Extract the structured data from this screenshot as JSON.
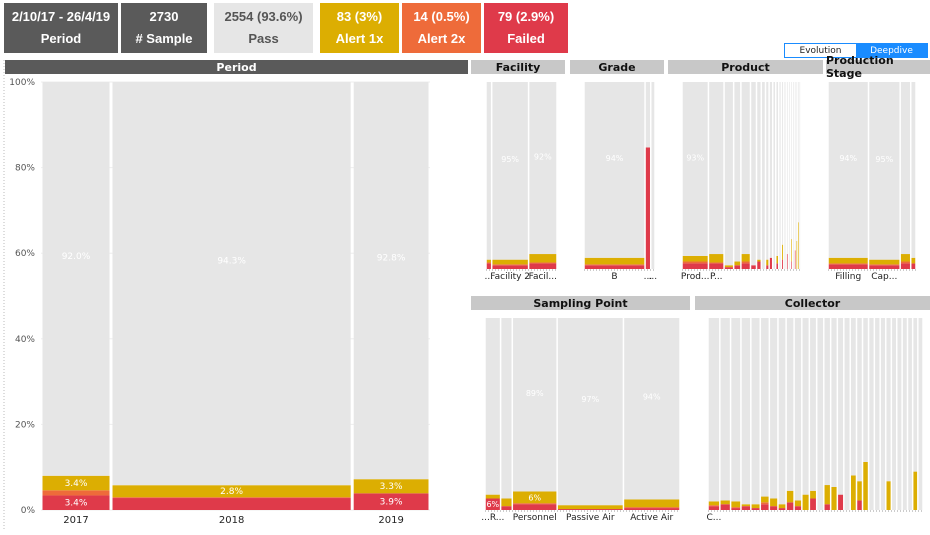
{
  "kpis": [
    {
      "value": "2/10/17 - 26/4/19",
      "label": "Period",
      "bg": "#5a5a5a",
      "fg": "#ffffff"
    },
    {
      "value": "2730",
      "label": "# Sample",
      "bg": "#5a5a5a",
      "fg": "#ffffff"
    },
    {
      "value": "2554 (93.6%)",
      "label": "Pass",
      "bg": "#e6e6e6",
      "fg": "#555555"
    },
    {
      "value": "83 (3%)",
      "label": "Alert 1x",
      "bg": "#dcae02",
      "fg": "#ffffff"
    },
    {
      "value": "14 (0.5%)",
      "label": "Alert 2x",
      "bg": "#ee6b3a",
      "fg": "#ffffff"
    },
    {
      "value": "79 (2.9%)",
      "label": "Failed",
      "bg": "#df3a4a",
      "fg": "#ffffff"
    }
  ],
  "toggle": {
    "evolution": "Evolution",
    "deepdive": "Deepdive"
  },
  "colors": {
    "pass": "#e6e6e6",
    "alert1": "#dcae02",
    "alert2": "#ee6b3a",
    "failed": "#df3a4a",
    "header": "#c8c8c8",
    "header_dark": "#5a5a5a"
  },
  "chart_data": [
    {
      "type": "bar",
      "title": "Period",
      "stacked": "100%",
      "categories": [
        "2017",
        "2018",
        "2019"
      ],
      "widths": [
        0.18,
        0.62,
        0.2
      ],
      "y_ticks": [
        "0%",
        "20%",
        "40%",
        "60%",
        "80%",
        "100%"
      ],
      "ylim": [
        0,
        100
      ],
      "series": [
        {
          "key": "failed",
          "values": [
            3.4,
            2.8,
            3.9
          ]
        },
        {
          "key": "alert2",
          "values": [
            1.2,
            0.2,
            0.0
          ]
        },
        {
          "key": "alert1",
          "values": [
            3.4,
            2.8,
            3.3
          ]
        },
        {
          "key": "pass",
          "values": [
            92.0,
            94.3,
            92.8
          ]
        }
      ],
      "labels": [
        {
          "cat": 0,
          "series": "failed",
          "text": "3.4%"
        },
        {
          "cat": 0,
          "series": "alert1",
          "text": "3.4%"
        },
        {
          "cat": 0,
          "series": "pass",
          "text": "92.0%"
        },
        {
          "cat": 1,
          "series": "alert1",
          "text": "2.8%"
        },
        {
          "cat": 1,
          "series": "pass",
          "text": "94.3%"
        },
        {
          "cat": 2,
          "series": "failed",
          "text": "3.9%"
        },
        {
          "cat": 2,
          "series": "alert1",
          "text": "3.3%"
        },
        {
          "cat": 2,
          "series": "pass",
          "text": "92.8%"
        }
      ]
    },
    {
      "type": "bar",
      "title": "Facility",
      "stacked": "100%",
      "categories": [
        "...",
        "Facility 2",
        "Facil..."
      ],
      "widths": [
        0.08,
        0.52,
        0.4
      ],
      "series": [
        {
          "key": "failed",
          "values": [
            3.0,
            2.0,
            3.0
          ]
        },
        {
          "key": "alert2",
          "values": [
            0.5,
            0.5,
            0.5
          ]
        },
        {
          "key": "alert1",
          "values": [
            1.5,
            2.5,
            4.5
          ]
        },
        {
          "key": "pass",
          "values": [
            95.0,
            95.0,
            92.0
          ]
        }
      ],
      "labels": [
        {
          "cat": 1,
          "series": "pass",
          "text": "95%"
        },
        {
          "cat": 2,
          "series": "pass",
          "text": "92%"
        }
      ]
    },
    {
      "type": "bar",
      "title": "Grade",
      "stacked": "100%",
      "categories": [
        "B",
        "...",
        "..."
      ],
      "widths": [
        0.86,
        0.08,
        0.06
      ],
      "series": [
        {
          "key": "failed",
          "values": [
            2.0,
            65.0,
            0.0
          ]
        },
        {
          "key": "alert2",
          "values": [
            0.5,
            0.0,
            0.0
          ]
        },
        {
          "key": "alert1",
          "values": [
            3.5,
            0.0,
            0.0
          ]
        },
        {
          "key": "pass",
          "values": [
            94.0,
            35.0,
            100.0
          ]
        }
      ],
      "labels": [
        {
          "cat": 0,
          "series": "pass",
          "text": "94%"
        }
      ]
    },
    {
      "type": "bar",
      "title": "Product",
      "stacked": "100%",
      "categories": [
        "Prod...",
        "P...",
        "",
        "",
        "",
        "",
        "",
        "",
        "",
        "",
        "",
        "",
        "",
        "",
        "",
        "",
        "",
        "",
        "",
        "",
        "",
        "",
        ""
      ],
      "widths": [
        0.22,
        0.13,
        0.08,
        0.06,
        0.08,
        0.05,
        0.04,
        0.035,
        0.03,
        0.03,
        0.025,
        0.025,
        0.022,
        0.02,
        0.02,
        0.018,
        0.017,
        0.016,
        0.015,
        0.014,
        0.013,
        0.012,
        0.01
      ],
      "series": [
        {
          "key": "failed",
          "values": [
            3.0,
            3.0,
            1.0,
            2.0,
            3.0,
            2.0,
            4.0,
            0.0,
            2.0,
            6.0,
            0.0,
            3.0,
            0.0,
            5.0,
            0.0,
            8.0,
            0.0,
            4.0,
            0.0,
            10.0,
            0.0,
            0.0,
            0.0
          ]
        },
        {
          "key": "alert2",
          "values": [
            1.0,
            0.5,
            0.0,
            0.0,
            1.0,
            0.0,
            0.0,
            0.0,
            0.0,
            0.0,
            0.0,
            0.0,
            0.0,
            0.0,
            0.0,
            0.0,
            0.0,
            0.0,
            0.0,
            0.0,
            0.0,
            0.0,
            0.0
          ]
        },
        {
          "key": "alert1",
          "values": [
            3.0,
            4.5,
            1.0,
            2.0,
            4.0,
            0.0,
            1.0,
            0.0,
            3.0,
            0.0,
            0.0,
            4.0,
            0.0,
            8.0,
            0.0,
            0.0,
            0.0,
            12.0,
            0.0,
            0.0,
            15.0,
            25.0,
            0.0
          ]
        },
        {
          "key": "pass",
          "values": [
            93.0,
            92.0,
            98.0,
            96.0,
            92.0,
            98.0,
            95.0,
            100.0,
            95.0,
            94.0,
            100.0,
            93.0,
            100.0,
            87.0,
            100.0,
            92.0,
            100.0,
            84.0,
            100.0,
            90.0,
            85.0,
            75.0,
            100.0
          ]
        }
      ],
      "labels": [
        {
          "cat": 0,
          "series": "pass",
          "text": "93%"
        }
      ]
    },
    {
      "type": "bar",
      "title": "Production Stage",
      "stacked": "100%",
      "categories": [
        "Filling",
        "Cap...",
        "",
        ""
      ],
      "widths": [
        0.46,
        0.36,
        0.12,
        0.06
      ],
      "series": [
        {
          "key": "failed",
          "values": [
            2.5,
            2.0,
            3.0,
            3.0
          ]
        },
        {
          "key": "alert2",
          "values": [
            0.5,
            0.5,
            1.0,
            0.0
          ]
        },
        {
          "key": "alert1",
          "values": [
            3.0,
            2.5,
            4.0,
            3.0
          ]
        },
        {
          "key": "pass",
          "values": [
            94.0,
            95.0,
            92.0,
            94.0
          ]
        }
      ],
      "labels": [
        {
          "cat": 0,
          "series": "pass",
          "text": "94%"
        },
        {
          "cat": 1,
          "series": "pass",
          "text": "95%"
        }
      ]
    },
    {
      "type": "bar",
      "title": "Sampling Point",
      "stacked": "100%",
      "categories": [
        "...R...",
        "",
        "Personnel",
        "Passive Air",
        "Active Air"
      ],
      "widths": [
        0.08,
        0.06,
        0.23,
        0.34,
        0.29
      ],
      "series": [
        {
          "key": "failed",
          "values": [
            6.0,
            2.0,
            3.0,
            0.5,
            1.0
          ]
        },
        {
          "key": "alert2",
          "values": [
            0.0,
            0.0,
            0.5,
            0.0,
            0.5
          ]
        },
        {
          "key": "alert1",
          "values": [
            2.0,
            4.0,
            6.0,
            2.0,
            4.0
          ]
        },
        {
          "key": "pass",
          "values": [
            92.0,
            94.0,
            89.0,
            97.0,
            94.0
          ]
        }
      ],
      "labels": [
        {
          "cat": 0,
          "series": "failed",
          "text": "6%"
        },
        {
          "cat": 2,
          "series": "alert1",
          "text": "6%"
        },
        {
          "cat": 2,
          "series": "pass",
          "text": "89%"
        },
        {
          "cat": 3,
          "series": "pass",
          "text": "97%"
        },
        {
          "cat": 4,
          "series": "pass",
          "text": "94%"
        }
      ]
    },
    {
      "type": "bar",
      "title": "Collector",
      "stacked": "100%",
      "categories": [
        "C...",
        "",
        "",
        "",
        "",
        "",
        "",
        "",
        "",
        "",
        "",
        "",
        "",
        "",
        "",
        "",
        "",
        "",
        "",
        "",
        "",
        "",
        "",
        "",
        "",
        "",
        "",
        "",
        "",
        ""
      ],
      "widths": [
        0.055,
        0.05,
        0.048,
        0.046,
        0.044,
        0.042,
        0.04,
        0.038,
        0.037,
        0.036,
        0.035,
        0.034,
        0.033,
        0.032,
        0.031,
        0.03,
        0.03,
        0.029,
        0.028,
        0.028,
        0.027,
        0.027,
        0.026,
        0.026,
        0.025,
        0.025,
        0.025,
        0.024,
        0.024,
        0.024
      ],
      "series": [
        {
          "key": "failed",
          "values": [
            2.0,
            3.0,
            1.0,
            2.0,
            1.0,
            3.0,
            2.0,
            1.0,
            4.0,
            2.0,
            0.0,
            6.0,
            0.0,
            3.0,
            0.0,
            8.0,
            0.0,
            0.0,
            5.0,
            0.0,
            0.0,
            0.0,
            0.0,
            0.0,
            0.0,
            0.0,
            0.0,
            0.0,
            0.0,
            0.0
          ]
        },
        {
          "key": "alert2",
          "values": [
            0.5,
            0.0,
            0.5,
            0.0,
            0.0,
            1.0,
            0.0,
            0.0,
            0.0,
            0.0,
            0.0,
            0.0,
            0.0,
            0.0,
            0.0,
            0.0,
            0.0,
            0.0,
            0.0,
            0.0,
            0.0,
            0.0,
            0.0,
            0.0,
            0.0,
            0.0,
            0.0,
            0.0,
            0.0,
            0.0
          ]
        },
        {
          "key": "alert1",
          "values": [
            2.0,
            2.0,
            3.0,
            1.0,
            2.0,
            3.0,
            4.0,
            2.0,
            6.0,
            3.0,
            8.0,
            4.0,
            0.0,
            10.0,
            12.0,
            0.0,
            0.0,
            18.0,
            10.0,
            25.0,
            0.0,
            0.0,
            0.0,
            15.0,
            0.0,
            0.0,
            0.0,
            0.0,
            20.0,
            0.0
          ]
        },
        {
          "key": "pass",
          "values": [
            95.5,
            95.0,
            95.5,
            97.0,
            97.0,
            93.0,
            94.0,
            97.0,
            90.0,
            95.0,
            92.0,
            90.0,
            100.0,
            87.0,
            88.0,
            92.0,
            100.0,
            82.0,
            85.0,
            75.0,
            100.0,
            100.0,
            100.0,
            85.0,
            100.0,
            100.0,
            100.0,
            100.0,
            80.0,
            100.0
          ]
        }
      ],
      "labels": []
    }
  ]
}
